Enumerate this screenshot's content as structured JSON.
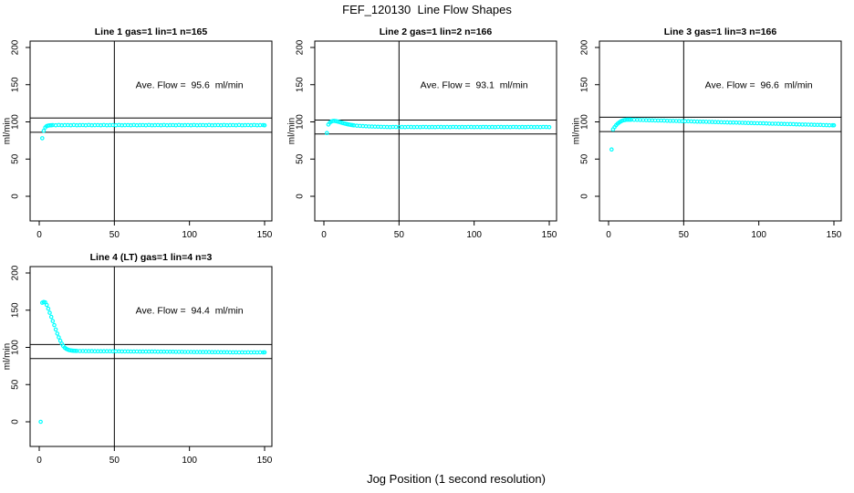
{
  "page": {
    "title": "FEF_120130  Line Flow Shapes",
    "xlabel": "Jog Position (1 second resolution)"
  },
  "chart_data": {
    "type": "scatter",
    "title": "FEF_120130  Line Flow Shapes",
    "xlabel": "Jog Position (1 second resolution)",
    "ylabel": "ml/min",
    "point_color": "#00FFFF",
    "line_color": "#000000",
    "grid": false,
    "legend": "none",
    "axis": {
      "x_ticks": [
        0,
        50,
        100,
        150
      ],
      "y_ticks": [
        0,
        50,
        100,
        150,
        200
      ],
      "x_domain": [
        -6,
        155
      ],
      "y_domain": [
        -33,
        209
      ],
      "ylabel": "ml/min",
      "vline_x": 50
    },
    "panels": [
      {
        "title": "Line 1 gas=1 lin=1 n=165",
        "annotation": "Ave. Flow =  95.6  ml/min",
        "ave_flow_ml_min": 95.6,
        "n": 165,
        "gas": 1,
        "lin": 1,
        "hlines": [
          105.2,
          86.0
        ],
        "x": [
          2,
          3,
          4,
          5,
          6,
          7,
          8,
          9,
          11,
          13,
          15,
          17,
          19,
          21,
          23,
          25,
          27,
          29,
          31,
          33,
          35,
          37,
          39,
          41,
          43,
          45,
          47,
          49,
          51,
          53,
          55,
          57,
          59,
          61,
          63,
          65,
          67,
          69,
          71,
          73,
          75,
          77,
          79,
          81,
          83,
          85,
          87,
          89,
          91,
          93,
          95,
          97,
          99,
          101,
          103,
          105,
          107,
          109,
          111,
          113,
          115,
          117,
          119,
          121,
          123,
          125,
          127,
          129,
          131,
          133,
          135,
          137,
          139,
          141,
          143,
          145,
          147,
          149,
          150
        ],
        "y": [
          78,
          88,
          92.5,
          94.3,
          95,
          95.3,
          95.5,
          95.7,
          95.4,
          95.8,
          95.5,
          95.6,
          95.7,
          95.4,
          95.8,
          95.5,
          95.6,
          95.7,
          95.4,
          95.8,
          95.5,
          95.6,
          95.7,
          95.4,
          95.8,
          95.5,
          95.6,
          95.7,
          95.4,
          95.8,
          95.5,
          95.6,
          95.7,
          95.4,
          95.8,
          95.5,
          95.6,
          95.7,
          95.4,
          95.8,
          95.5,
          95.6,
          95.7,
          95.4,
          95.8,
          95.5,
          95.6,
          95.7,
          95.4,
          95.8,
          95.5,
          95.6,
          95.7,
          95.4,
          95.8,
          95.5,
          95.6,
          95.7,
          95.4,
          95.8,
          95.5,
          95.6,
          95.7,
          95.4,
          95.8,
          95.5,
          95.6,
          95.7,
          95.4,
          95.8,
          95.5,
          95.6,
          95.7,
          95.4,
          95.8,
          95.5,
          95.6,
          95.7,
          95.5
        ]
      },
      {
        "title": "Line 2 gas=1 lin=2 n=166",
        "annotation": "Ave. Flow =  93.1  ml/min",
        "ave_flow_ml_min": 93.1,
        "n": 166,
        "gas": 1,
        "lin": 2,
        "hlines": [
          102.4,
          83.8
        ],
        "x": [
          2,
          3,
          4,
          5,
          6,
          7,
          8,
          9,
          10,
          11,
          12,
          13,
          14,
          15,
          16,
          17,
          18,
          19,
          20,
          22,
          24,
          26,
          28,
          30,
          32,
          34,
          36,
          38,
          40,
          42,
          44,
          46,
          48,
          50,
          52,
          54,
          56,
          58,
          60,
          62,
          64,
          66,
          68,
          70,
          72,
          74,
          76,
          78,
          80,
          82,
          84,
          86,
          88,
          90,
          92,
          94,
          96,
          98,
          100,
          102,
          104,
          106,
          108,
          110,
          112,
          114,
          116,
          118,
          120,
          122,
          124,
          126,
          128,
          130,
          132,
          134,
          136,
          138,
          140,
          142,
          144,
          146,
          148,
          150
        ],
        "y": [
          85,
          96.5,
          99,
          100.5,
          101.2,
          101.3,
          101,
          100.5,
          100,
          99.4,
          98.8,
          98.2,
          97.7,
          97.2,
          96.7,
          96.3,
          95.9,
          95.6,
          95.3,
          94.9,
          94.6,
          94.3,
          94.1,
          93.9,
          93.7,
          93.6,
          93.5,
          93.4,
          93.3,
          93.1,
          93,
          93.2,
          93.1,
          93,
          93.1,
          93,
          93.2,
          93.1,
          93,
          93.1,
          93,
          93.2,
          93.1,
          93,
          93.1,
          93,
          93.2,
          93.1,
          93,
          93.1,
          93,
          93.2,
          93.1,
          93,
          93.1,
          93,
          93.2,
          93.1,
          93,
          93.1,
          93,
          93.2,
          93.1,
          93,
          93.1,
          93,
          93.2,
          93.1,
          93,
          93.1,
          93,
          93.2,
          93.1,
          93,
          93.1,
          93,
          93.2,
          93.1,
          93,
          93.1,
          93,
          93.2,
          93.1,
          93
        ]
      },
      {
        "title": "Line 3 gas=1 lin=3 n=166",
        "annotation": "Ave. Flow =  96.6  ml/min",
        "ave_flow_ml_min": 96.6,
        "n": 166,
        "gas": 1,
        "lin": 3,
        "hlines": [
          106.3,
          86.9
        ],
        "x": [
          2,
          3,
          4,
          5,
          6,
          7,
          8,
          9,
          10,
          11,
          12,
          13,
          14,
          15,
          17,
          19,
          21,
          23,
          25,
          27,
          29,
          31,
          33,
          35,
          37,
          39,
          41,
          43,
          45,
          47,
          49,
          51,
          53,
          55,
          57,
          59,
          61,
          63,
          65,
          67,
          69,
          71,
          73,
          75,
          77,
          79,
          81,
          83,
          85,
          87,
          89,
          91,
          93,
          95,
          97,
          99,
          101,
          103,
          105,
          107,
          109,
          111,
          113,
          115,
          117,
          119,
          121,
          123,
          125,
          127,
          129,
          131,
          133,
          135,
          137,
          139,
          141,
          143,
          145,
          147,
          149,
          150
        ],
        "y": [
          63,
          90,
          93,
          95.5,
          97.5,
          99,
          100.5,
          101.5,
          102.2,
          102.6,
          102.9,
          103,
          103,
          102.9,
          102.8,
          102.7,
          102.6,
          102.4,
          102.3,
          102.2,
          102.1,
          102,
          101.9,
          101.8,
          101.7,
          101.5,
          101.4,
          101.3,
          101.2,
          101.1,
          101,
          100.9,
          100.8,
          100.7,
          100.5,
          100.4,
          100.3,
          100.2,
          100.1,
          100,
          99.9,
          99.8,
          99.6,
          99.5,
          99.4,
          99.3,
          99.2,
          99.1,
          99,
          98.9,
          98.8,
          98.6,
          98.5,
          98.4,
          98.3,
          98.2,
          98.1,
          98,
          97.9,
          97.7,
          97.6,
          97.5,
          97.4,
          97.3,
          97.2,
          97.1,
          97,
          96.9,
          96.7,
          96.6,
          96.5,
          96.4,
          96.3,
          96.2,
          96.1,
          96,
          95.9,
          95.7,
          95.6,
          95.5,
          95.5,
          95.5
        ]
      },
      {
        "title": "Line 4 (LT) gas=1 lin=4 n=3",
        "annotation": "Ave. Flow =  94.4  ml/min",
        "ave_flow_ml_min": 94.4,
        "n": 3,
        "gas": 1,
        "lin": 4,
        "hlines": [
          103.8,
          85.0
        ],
        "x": [
          1,
          2,
          3,
          4,
          5,
          6,
          7,
          8,
          9,
          10,
          11,
          12,
          13,
          14,
          15,
          16,
          17,
          18,
          19,
          20,
          21,
          22,
          23,
          24,
          25,
          27,
          29,
          31,
          33,
          35,
          37,
          39,
          41,
          43,
          45,
          47,
          49,
          51,
          53,
          55,
          57,
          59,
          61,
          63,
          65,
          67,
          69,
          71,
          73,
          75,
          77,
          79,
          81,
          83,
          85,
          87,
          89,
          91,
          93,
          95,
          97,
          99,
          101,
          103,
          105,
          107,
          109,
          111,
          113,
          115,
          117,
          119,
          121,
          123,
          125,
          127,
          129,
          131,
          133,
          135,
          137,
          139,
          141,
          143,
          145,
          147,
          149,
          150
        ],
        "y": [
          0,
          160,
          161,
          160.5,
          157,
          152,
          146.5,
          141,
          135.5,
          130,
          124,
          118.5,
          113.5,
          109,
          105,
          101.8,
          99.5,
          98,
          97,
          96.3,
          95.9,
          95.6,
          95.4,
          95.3,
          95.2,
          95.1,
          95.1,
          95,
          95,
          95,
          94.9,
          94.9,
          94.9,
          94.8,
          94.8,
          94.8,
          94.7,
          94.7,
          94.7,
          94.6,
          94.6,
          94.6,
          94.5,
          94.5,
          94.5,
          94.4,
          94.4,
          94.4,
          94.3,
          94.3,
          94.3,
          94.2,
          94.2,
          94.2,
          94.1,
          94.1,
          94.1,
          94,
          94,
          94,
          93.9,
          93.9,
          93.9,
          93.8,
          93.8,
          93.8,
          93.7,
          93.7,
          93.7,
          93.6,
          93.6,
          93.6,
          93.5,
          93.5,
          93.5,
          93.4,
          93.4,
          93.4,
          93.3,
          93.4,
          93.3,
          93.4,
          93.3,
          93.4,
          93.3,
          93.4,
          93.3,
          93.4
        ]
      }
    ]
  }
}
